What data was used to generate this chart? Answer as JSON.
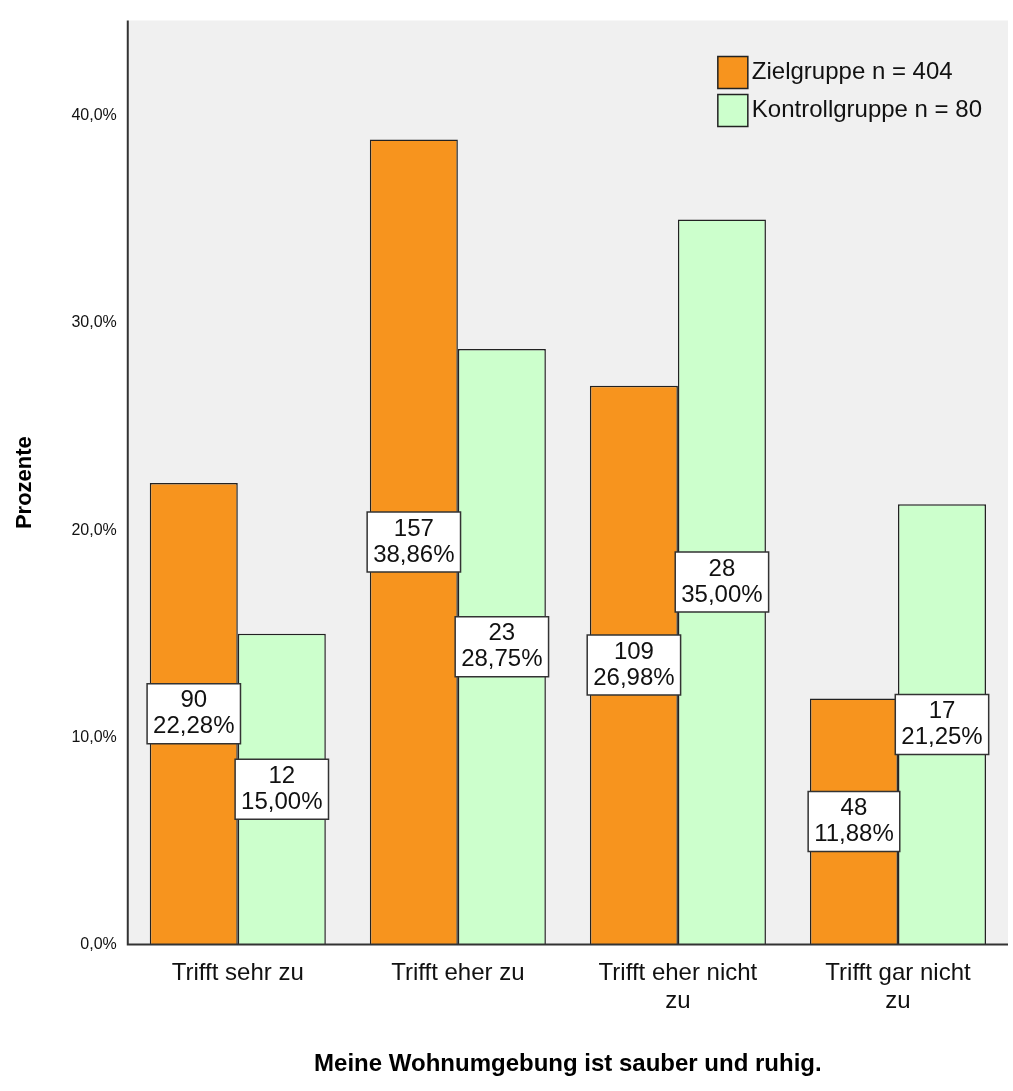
{
  "chart_data": {
    "type": "bar",
    "xlabel": "Meine Wohnumgebung ist sauber und ruhig.",
    "ylabel": "Prozente",
    "categories": [
      "Trifft sehr zu",
      "Trifft eher zu",
      "Trifft eher nicht zu",
      "Trifft gar nicht zu"
    ],
    "series": [
      {
        "name": "Zielgruppe n = 404",
        "color": "#f7941e",
        "values": [
          22.28,
          38.86,
          26.98,
          11.88
        ],
        "value_labels": [
          "90\n22,28%",
          "157\n38,86%",
          "109\n26,98%",
          "48\n11,88%"
        ]
      },
      {
        "name": "Kontrollgruppe n = 80",
        "color": "#ccffcc",
        "values": [
          15.0,
          28.75,
          35.0,
          21.25
        ],
        "value_labels": [
          "12\n15,00%",
          "23\n28,75%",
          "28\n35,00%",
          "17\n21,25%"
        ]
      }
    ],
    "ylim": [
      0,
      44.6
    ],
    "yticks": [
      {
        "value": 0,
        "label": "0,0%"
      },
      {
        "value": 10,
        "label": "10,0%"
      },
      {
        "value": 20,
        "label": "20,0%"
      },
      {
        "value": 30,
        "label": "30,0%"
      },
      {
        "value": 40,
        "label": "40,0%"
      }
    ],
    "grid": false,
    "legend": "top right"
  }
}
